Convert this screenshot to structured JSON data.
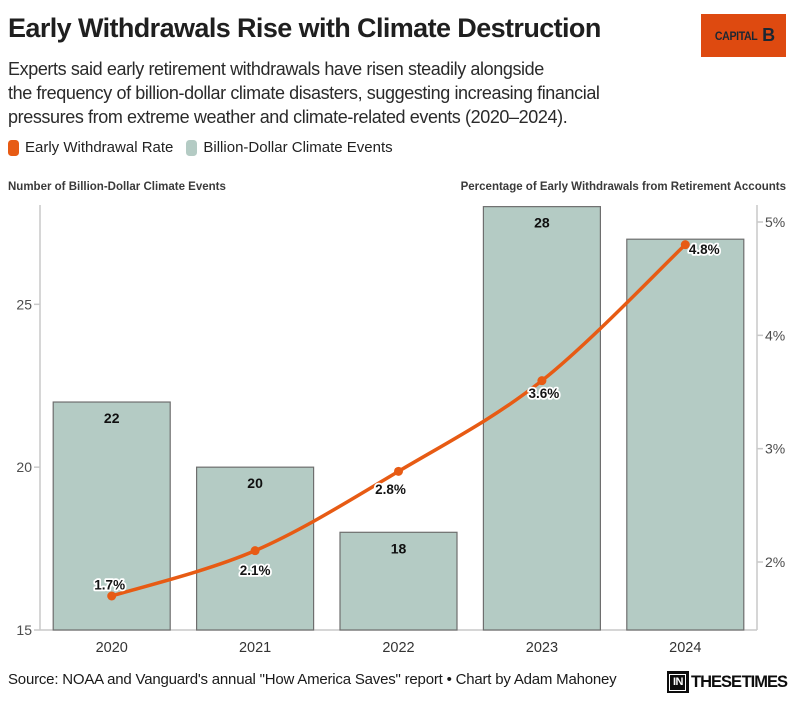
{
  "header": {
    "title": "Early Withdrawals Rise with Climate Destruction",
    "subtitle": "Experts said early retirement withdrawals have risen steadily alongside\nthe frequency of billion-dollar climate disasters, suggesting increasing financial\npressures from extreme weather and climate-related events (2020–2024).",
    "capital_b_logo": {
      "word": "CAPITAL",
      "letter": "B",
      "bg": "#de4a10",
      "fg": "#1c2733"
    }
  },
  "legend": {
    "items": [
      {
        "label": "Early Withdrawal Rate",
        "color": "#e75b14"
      },
      {
        "label": "Billion-Dollar Climate Events",
        "color": "#b4cbc4"
      }
    ]
  },
  "chart_data": {
    "type": "bar+line",
    "categories": [
      "2020",
      "2021",
      "2022",
      "2023",
      "2024"
    ],
    "series": [
      {
        "name": "Billion-Dollar Climate Events",
        "type": "bar",
        "axis": "left",
        "color": "#b4cbc4",
        "border_color": "#6e6e6e",
        "values": [
          22,
          20,
          18,
          28,
          27
        ],
        "bar_labels": [
          "22",
          "20",
          "18",
          "28",
          ""
        ]
      },
      {
        "name": "Early Withdrawal Rate",
        "type": "line",
        "axis": "right",
        "color": "#e75b14",
        "values": [
          1.7,
          2.1,
          2.8,
          3.6,
          4.8
        ],
        "point_labels": [
          "1.7%",
          "2.1%",
          "2.8%",
          "3.6%",
          "4.8%"
        ],
        "label_offsets": [
          [
            -2,
            -11
          ],
          [
            0,
            20
          ],
          [
            -8,
            18
          ],
          [
            2,
            13
          ],
          [
            19,
            5
          ]
        ]
      }
    ],
    "left_axis": {
      "title": "Number of Billion-Dollar Climate Events",
      "ticks": [
        15,
        20,
        25
      ],
      "range": [
        15,
        28.05
      ]
    },
    "right_axis": {
      "title": "Percentage of Early Withdrawals from Retirement Accounts",
      "tick_labels": [
        "2%",
        "3%",
        "4%",
        "5%"
      ],
      "tick_values": [
        2,
        3,
        4,
        5
      ],
      "range": [
        1.4,
        5.15
      ]
    },
    "grid": false,
    "legend_position": "top-left"
  },
  "footer": {
    "source": "Source: NOAA and Vanguard's annual \"How America Saves\" report • Chart by Adam Mahoney",
    "itt_logo": {
      "in": "IN",
      "rest": "THESE TIMES"
    }
  }
}
